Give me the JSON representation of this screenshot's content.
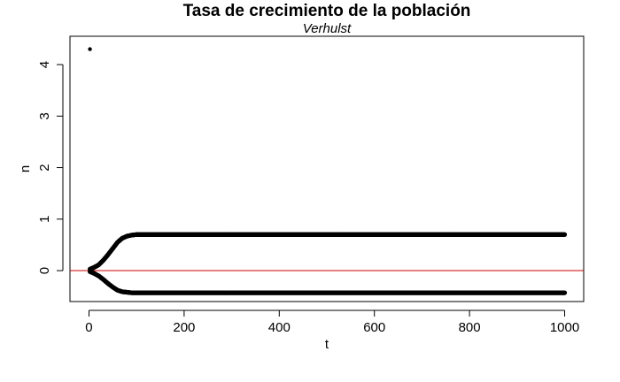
{
  "chart_data": {
    "type": "scatter",
    "title": "Tasa de crecimiento de la población",
    "subtitle": "Verhulst",
    "xlabel": "t",
    "ylabel": "n",
    "xlim": [
      -40,
      1040
    ],
    "ylim": [
      -0.6,
      4.55
    ],
    "xticks": [
      0,
      200,
      400,
      600,
      800,
      1000
    ],
    "yticks": [
      0,
      1,
      2,
      3,
      4
    ],
    "xtick_labels": [
      "0",
      "200",
      "400",
      "600",
      "800",
      "1000"
    ],
    "ytick_labels": [
      "0",
      "1",
      "2",
      "3",
      "4"
    ],
    "grid": false,
    "hline": {
      "y": 0,
      "color": "#cc0000"
    },
    "point_color": "#000000",
    "outlier": {
      "x": 2,
      "y": 4.3
    },
    "upper_branch": {
      "x": [
        2,
        10,
        20,
        30,
        40,
        50,
        60,
        70,
        80,
        90,
        100,
        120,
        150,
        200,
        300,
        400,
        500,
        600,
        700,
        800,
        900,
        1000
      ],
      "y": [
        0.03,
        0.06,
        0.11,
        0.2,
        0.31,
        0.43,
        0.55,
        0.63,
        0.67,
        0.69,
        0.7,
        0.7,
        0.7,
        0.7,
        0.7,
        0.7,
        0.7,
        0.7,
        0.7,
        0.7,
        0.7,
        0.7
      ]
    },
    "lower_branch": {
      "x": [
        2,
        10,
        20,
        30,
        40,
        50,
        60,
        70,
        80,
        90,
        100,
        120,
        150,
        200,
        300,
        400,
        500,
        600,
        700,
        800,
        900,
        1000
      ],
      "y": [
        -0.02,
        -0.05,
        -0.1,
        -0.17,
        -0.25,
        -0.32,
        -0.38,
        -0.41,
        -0.42,
        -0.43,
        -0.43,
        -0.43,
        -0.43,
        -0.43,
        -0.43,
        -0.43,
        -0.43,
        -0.43,
        -0.43,
        -0.43,
        -0.43,
        -0.43
      ]
    }
  }
}
